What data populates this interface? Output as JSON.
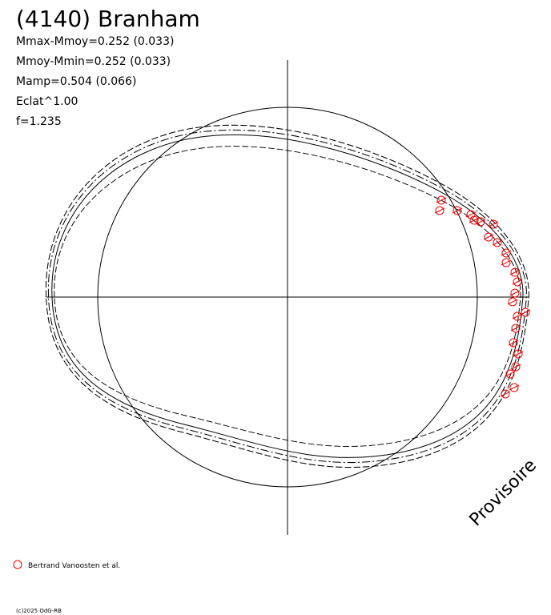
{
  "chart_data": {
    "type": "polar",
    "title": "(4140) Branham",
    "annotations": [
      "Mmax-Mmoy=0.252 (0.033)",
      "Mmoy-Mmin=0.252 (0.033)",
      "Mamp=0.504 (0.066)",
      "Eclat^1.00",
      "f=1.235"
    ],
    "watermark": "Provisoire",
    "legend": [
      "Bertrand Vanoosten et al."
    ],
    "copyright": "(c)2025 OdG-RB"
  }
}
